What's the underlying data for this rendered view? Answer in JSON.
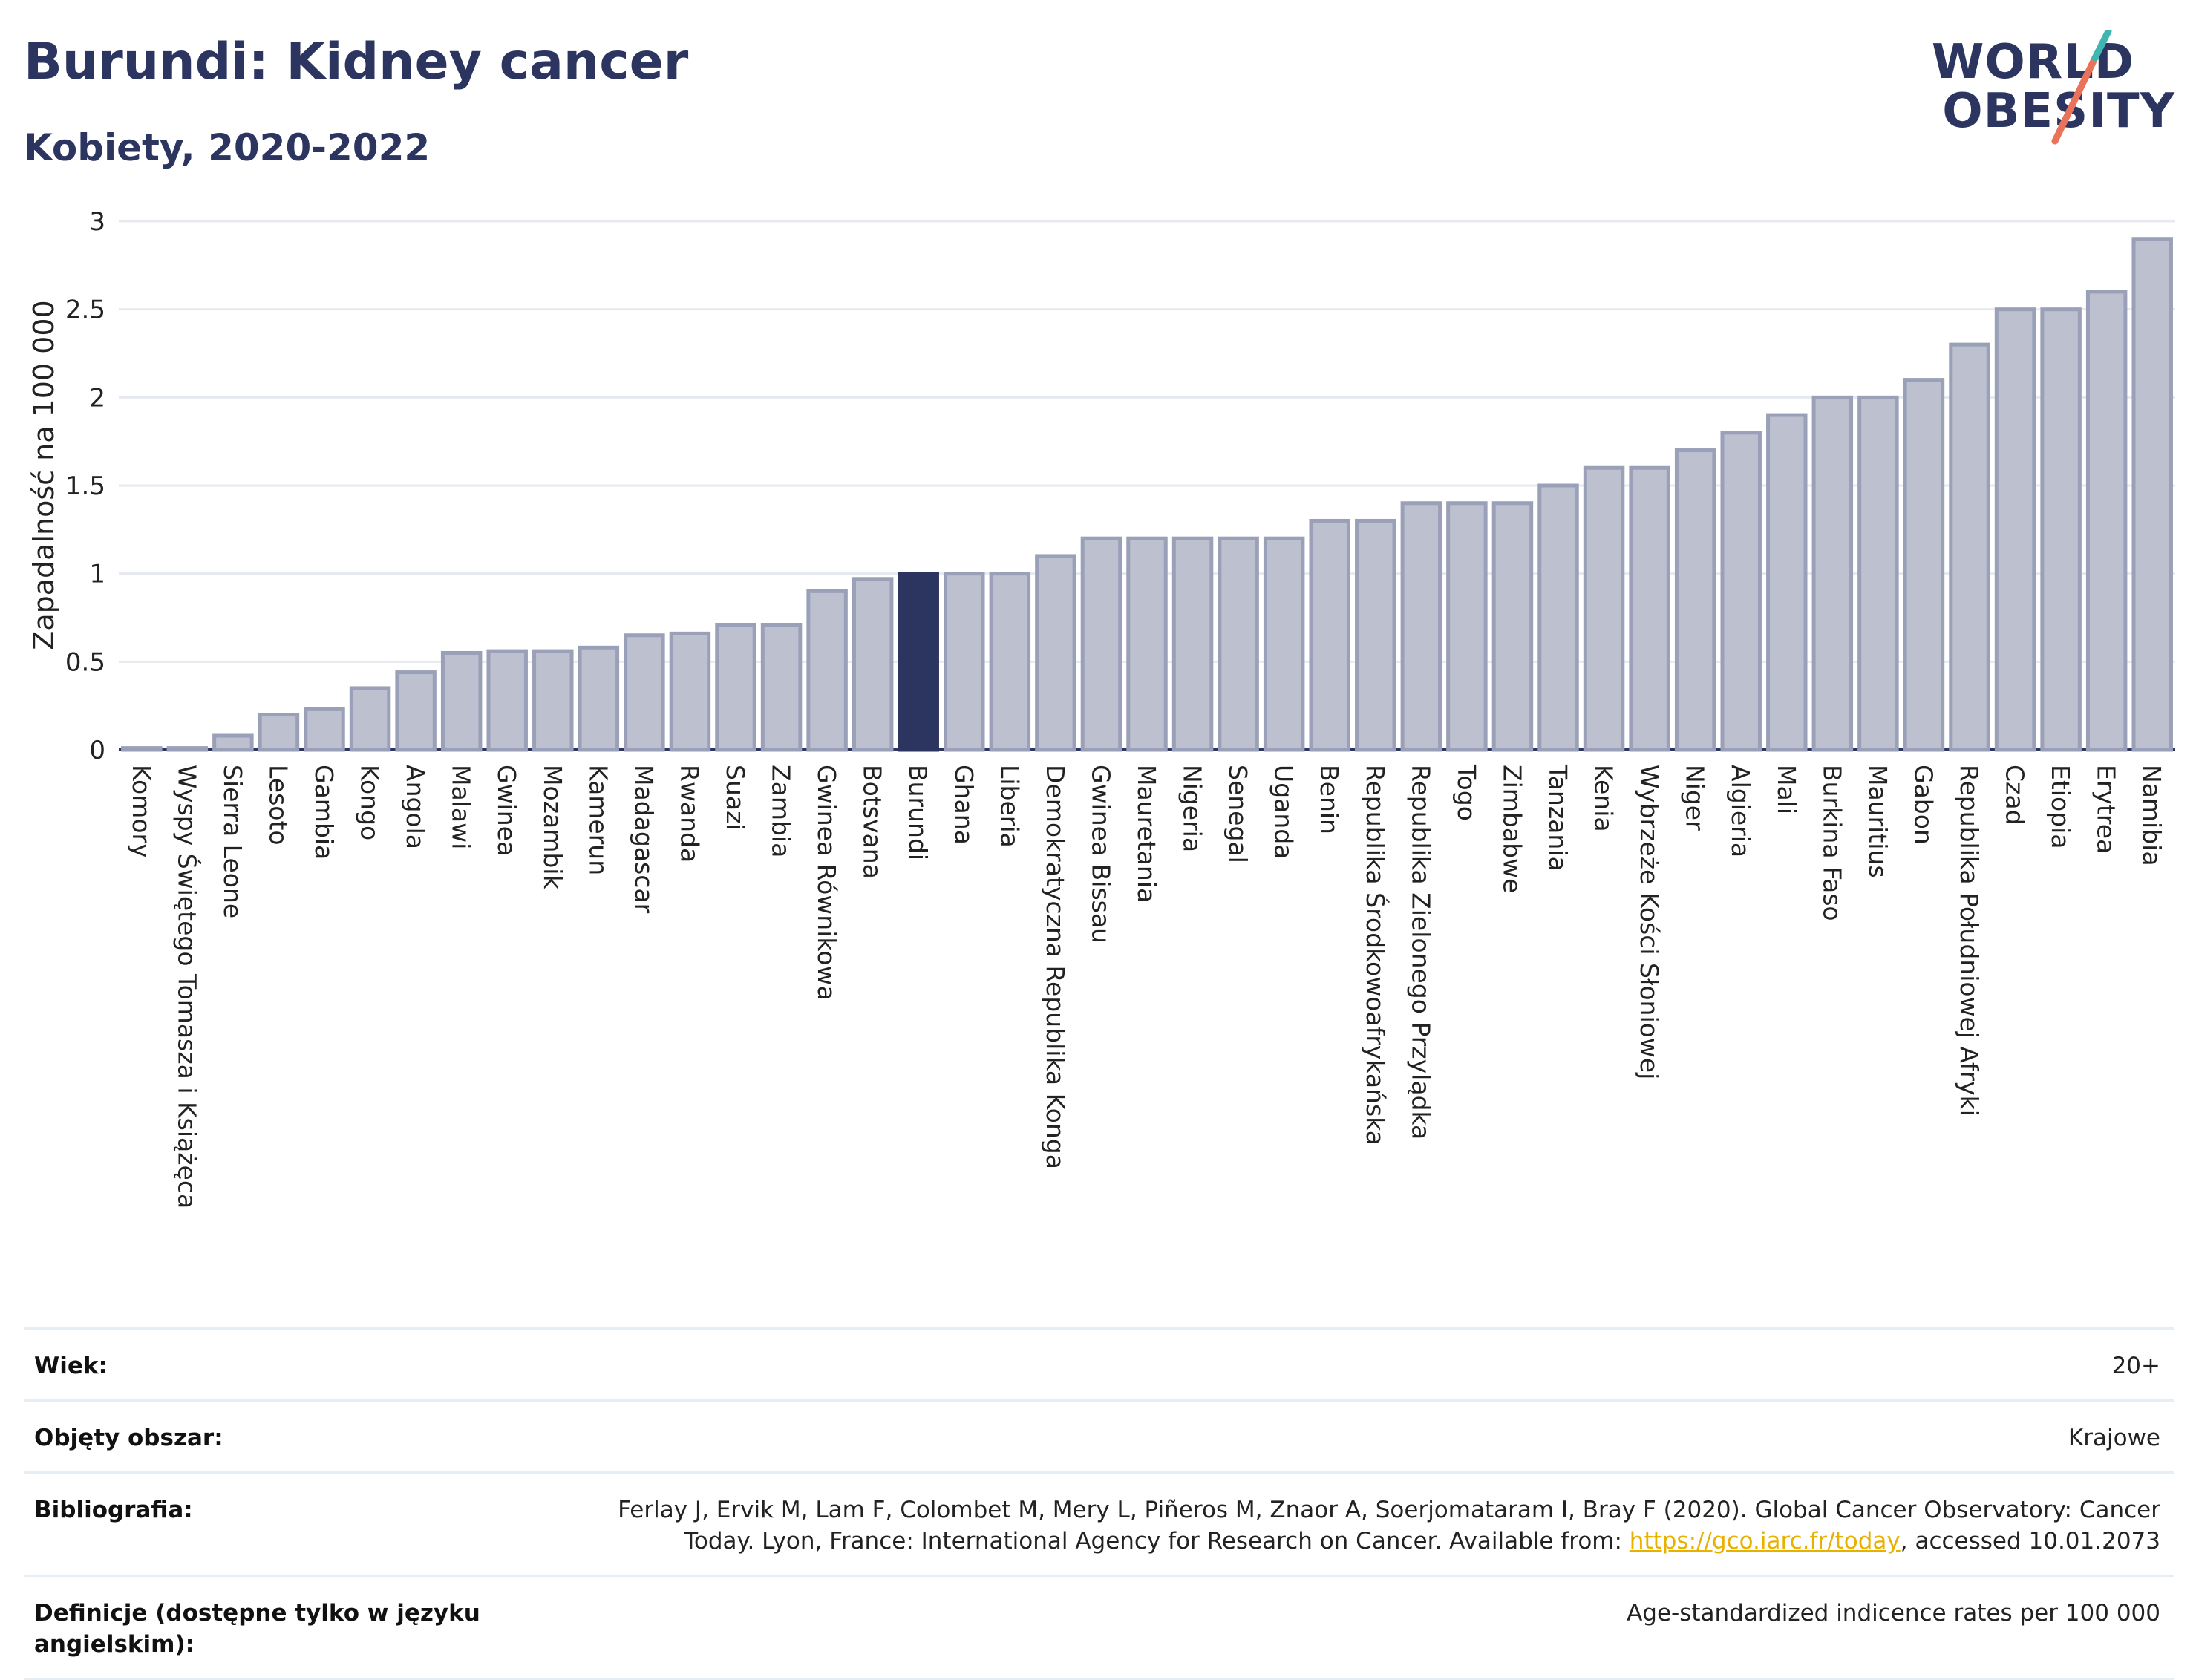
{
  "header": {
    "title": "Burundi: Kidney cancer",
    "subtitle": "Kobiety, 2020-2022"
  },
  "logo": {
    "line1": "WORLD",
    "line2": "OBESITY"
  },
  "colors": {
    "bar": "#bcc0cf",
    "bar_border": "#9aa0b8",
    "highlight": "#2c3560",
    "grid": "#e6e9ef"
  },
  "chart_data": {
    "type": "bar",
    "title": "Burundi: Kidney cancer",
    "subtitle": "Kobiety, 2020-2022",
    "xlabel": "",
    "ylabel": "Zapadalność na 100 000",
    "ylim": [
      0,
      3
    ],
    "yticks": [
      "0",
      "0.5",
      "1",
      "1.5",
      "2",
      "2.5",
      "3"
    ],
    "ytick_values": [
      0,
      0.5,
      1,
      1.5,
      2,
      2.5,
      3
    ],
    "grid": true,
    "highlight": "Burundi",
    "categories": [
      "Komory",
      "Wyspy Świętego Tomasza i Książęca",
      "Sierra Leone",
      "Lesoto",
      "Gambia",
      "Kongo",
      "Angola",
      "Malawi",
      "Gwinea",
      "Mozambik",
      "Kamerun",
      "Madagascar",
      "Rwanda",
      "Suazi",
      "Zambia",
      "Gwinea Równikowa",
      "Botsvana",
      "Burundi",
      "Ghana",
      "Liberia",
      "Demokratyczna Republika Konga",
      "Gwinea Bissau",
      "Mauretania",
      "Nigeria",
      "Senegal",
      "Uganda",
      "Benin",
      "Republika Środkowoafrykańska",
      "Republika Zielonego Przylądka",
      "Togo",
      "Zimbabwe",
      "Tanzania",
      "Kenia",
      "Wybrzeże Kości Słoniowej",
      "Niger",
      "Algieria",
      "Mali",
      "Burkina Faso",
      "Mauritius",
      "Gabon",
      "Republika Południowej Afryki",
      "Czad",
      "Etiopia",
      "Erytrea",
      "Namibia"
    ],
    "values": [
      0.01,
      0.01,
      0.08,
      0.2,
      0.23,
      0.35,
      0.44,
      0.55,
      0.56,
      0.56,
      0.58,
      0.65,
      0.66,
      0.71,
      0.71,
      0.9,
      0.97,
      1.0,
      1.0,
      1.0,
      1.1,
      1.2,
      1.2,
      1.2,
      1.2,
      1.2,
      1.3,
      1.3,
      1.4,
      1.4,
      1.4,
      1.5,
      1.6,
      1.6,
      1.7,
      1.8,
      1.9,
      2.0,
      2.0,
      2.1,
      2.3,
      2.5,
      2.5,
      2.6,
      2.9
    ]
  },
  "info": {
    "age_label": "Wiek:",
    "age_value": "20+",
    "coverage_label": "Objęty obszar:",
    "coverage_value": "Krajowe",
    "biblio_label": "Bibliografia:",
    "biblio_text_1": "Ferlay J, Ervik M, Lam F, Colombet M, Mery L, Piñeros M, Znaor A, Soerjomataram I, Bray F (2020). Global Cancer Observatory: Cancer",
    "biblio_text_2": "Today. Lyon, France: International Agency for Research on Cancer. Available from: ",
    "biblio_link": "https://gco.iarc.fr/today",
    "biblio_text_3": ", accessed 10.01.2073",
    "def_label": "Definicje (dostępne tylko w języku angielskim):",
    "def_value": "Age-standardized indicence rates per 100 000"
  }
}
